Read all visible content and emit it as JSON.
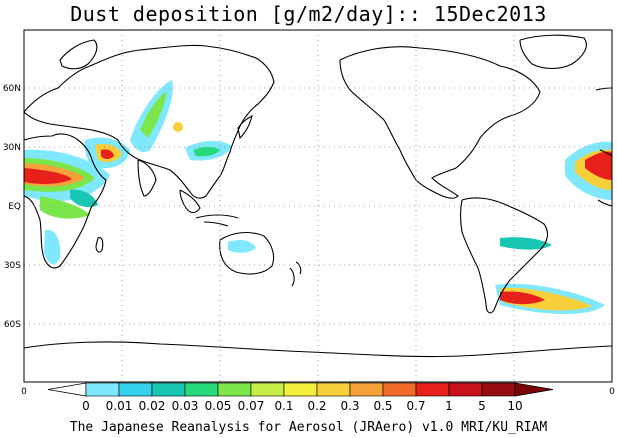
{
  "title": "Dust deposition [g/m2/day]:: 15Dec2013",
  "footer": "The Japanese Reanalysis for Aerosol (JRAero) v1.0 MRI/KU_RIAM",
  "map": {
    "projection": "cylindrical, centered 180",
    "lat_labels": [
      {
        "lat": 60,
        "label": "60N"
      },
      {
        "lat": 30,
        "label": "30N"
      },
      {
        "lat": 0,
        "label": "EQ"
      },
      {
        "lat": -30,
        "label": "30S"
      },
      {
        "lat": -60,
        "label": "60S"
      }
    ],
    "lon_axis_labels": {
      "left": "0",
      "right": "0"
    },
    "grid": "dotted"
  },
  "colorbar": {
    "bins": [
      {
        "color": "#ffffff"
      },
      {
        "color": "#7fe8ff"
      },
      {
        "color": "#34d2ee"
      },
      {
        "color": "#17c7b4"
      },
      {
        "color": "#26d97a"
      },
      {
        "color": "#7ae64a"
      },
      {
        "color": "#c6ee46"
      },
      {
        "color": "#f2f03a"
      },
      {
        "color": "#f7cf3a"
      },
      {
        "color": "#f7a13a"
      },
      {
        "color": "#f26b2a"
      },
      {
        "color": "#e8201c"
      },
      {
        "color": "#c8111a"
      },
      {
        "color": "#950c12"
      }
    ],
    "left_arrow_color": "#ffffff",
    "right_arrow_color": "#7a0509",
    "ticks": [
      "0",
      "0.01",
      "0.02",
      "0.03",
      "0.05",
      "0.07",
      "0.1",
      "0.2",
      "0.3",
      "0.5",
      "0.7",
      "1",
      "5",
      "10"
    ]
  }
}
